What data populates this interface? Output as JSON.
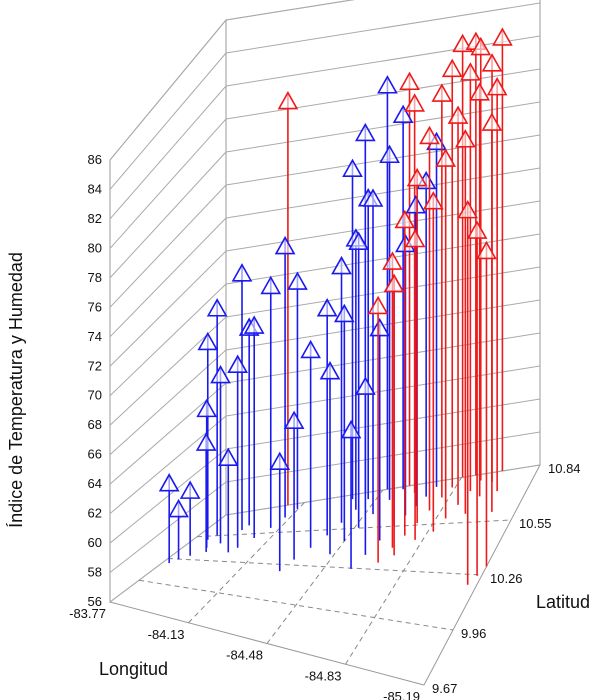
{
  "chart_data": {
    "type": "3d-stem",
    "title": "",
    "zlabel": "Índice de Temperatura y Humedad",
    "xlabel": "Longitud",
    "ylabel": "Latitud",
    "zlim": [
      56,
      86
    ],
    "z_ticks": [
      "56",
      "58",
      "60",
      "62",
      "64",
      "66",
      "68",
      "70",
      "72",
      "74",
      "76",
      "78",
      "80",
      "82",
      "84",
      "86"
    ],
    "x_ticks": [
      "-83.77",
      "-84.13",
      "-84.48",
      "-84.83",
      "-85.19"
    ],
    "y_ticks": [
      "9.67",
      "9.96",
      "10.26",
      "10.55",
      "10.84"
    ],
    "grid": true,
    "colors": {
      "low": "#1a1aee",
      "high": "#ee1a1a"
    },
    "series": [
      {
        "color_key": "low",
        "points": [
          {
            "x": -83.8,
            "y": 10.2,
            "z": 62
          },
          {
            "x": -83.82,
            "y": 10.25,
            "z": 60
          },
          {
            "x": -83.85,
            "y": 10.3,
            "z": 61
          },
          {
            "x": -83.9,
            "y": 10.35,
            "z": 64
          },
          {
            "x": -83.88,
            "y": 10.4,
            "z": 66
          },
          {
            "x": -83.92,
            "y": 10.45,
            "z": 68
          },
          {
            "x": -83.84,
            "y": 10.5,
            "z": 70
          },
          {
            "x": -83.86,
            "y": 10.55,
            "z": 72
          },
          {
            "x": -83.95,
            "y": 10.6,
            "z": 74
          },
          {
            "x": -84.0,
            "y": 10.35,
            "z": 63
          },
          {
            "x": -84.02,
            "y": 10.4,
            "z": 69
          },
          {
            "x": -84.05,
            "y": 10.5,
            "z": 71
          },
          {
            "x": -84.08,
            "y": 10.6,
            "z": 73
          },
          {
            "x": -84.1,
            "y": 10.7,
            "z": 75
          },
          {
            "x": -84.12,
            "y": 10.78,
            "z": 72
          },
          {
            "x": -83.96,
            "y": 10.65,
            "z": 70
          },
          {
            "x": -84.3,
            "y": 10.2,
            "z": 64
          },
          {
            "x": -84.32,
            "y": 10.3,
            "z": 66
          },
          {
            "x": -84.35,
            "y": 10.4,
            "z": 70
          },
          {
            "x": -84.38,
            "y": 10.5,
            "z": 72
          },
          {
            "x": -84.4,
            "y": 10.6,
            "z": 74
          },
          {
            "x": -84.42,
            "y": 10.7,
            "z": 75
          },
          {
            "x": -84.44,
            "y": 10.78,
            "z": 77
          },
          {
            "x": -84.36,
            "y": 10.8,
            "z": 79
          },
          {
            "x": -84.46,
            "y": 10.35,
            "z": 69
          },
          {
            "x": -84.48,
            "y": 10.45,
            "z": 72
          },
          {
            "x": -84.5,
            "y": 10.55,
            "z": 76
          },
          {
            "x": -84.52,
            "y": 10.65,
            "z": 78
          },
          {
            "x": -84.55,
            "y": 10.75,
            "z": 80
          },
          {
            "x": -84.58,
            "y": 10.82,
            "z": 82
          },
          {
            "x": -84.6,
            "y": 10.25,
            "z": 66
          },
          {
            "x": -84.62,
            "y": 10.35,
            "z": 68
          },
          {
            "x": -84.64,
            "y": 10.45,
            "z": 71
          },
          {
            "x": -84.66,
            "y": 10.55,
            "z": 73
          },
          {
            "x": -84.68,
            "y": 10.62,
            "z": 75
          },
          {
            "x": -84.7,
            "y": 10.68,
            "z": 77
          },
          {
            "x": -84.72,
            "y": 10.74,
            "z": 78
          },
          {
            "x": -84.74,
            "y": 10.8,
            "z": 80
          },
          {
            "x": -84.5,
            "y": 10.84,
            "z": 84
          },
          {
            "x": -84.4,
            "y": 10.84,
            "z": 81
          }
        ]
      },
      {
        "color_key": "high",
        "points": [
          {
            "x": -84.7,
            "y": 10.3,
            "z": 74
          },
          {
            "x": -84.72,
            "y": 10.4,
            "z": 76
          },
          {
            "x": -84.74,
            "y": 10.48,
            "z": 78
          },
          {
            "x": -84.76,
            "y": 10.56,
            "z": 80
          },
          {
            "x": -84.78,
            "y": 10.64,
            "z": 82
          },
          {
            "x": -84.8,
            "y": 10.72,
            "z": 84
          },
          {
            "x": -84.82,
            "y": 10.78,
            "z": 85
          },
          {
            "x": -84.84,
            "y": 10.84,
            "z": 86
          },
          {
            "x": -84.86,
            "y": 10.5,
            "z": 79
          },
          {
            "x": -84.88,
            "y": 10.58,
            "z": 81
          },
          {
            "x": -84.9,
            "y": 10.66,
            "z": 83
          },
          {
            "x": -84.92,
            "y": 10.74,
            "z": 85
          },
          {
            "x": -84.94,
            "y": 10.8,
            "z": 86
          },
          {
            "x": -84.96,
            "y": 10.6,
            "z": 82
          },
          {
            "x": -84.98,
            "y": 10.7,
            "z": 84
          },
          {
            "x": -85.0,
            "y": 10.78,
            "z": 85
          },
          {
            "x": -84.6,
            "y": 10.84,
            "z": 84
          },
          {
            "x": -84.65,
            "y": 10.78,
            "z": 83
          },
          {
            "x": -84.8,
            "y": 10.45,
            "z": 77
          },
          {
            "x": -84.75,
            "y": 10.35,
            "z": 75
          },
          {
            "x": -85.02,
            "y": 10.84,
            "z": 86
          },
          {
            "x": -85.05,
            "y": 10.72,
            "z": 84
          },
          {
            "x": -85.08,
            "y": 10.6,
            "z": 83
          },
          {
            "x": -84.9,
            "y": 10.84,
            "z": 86
          },
          {
            "x": -85.15,
            "y": 10.2,
            "z": 82
          },
          {
            "x": -85.17,
            "y": 10.25,
            "z": 80
          },
          {
            "x": -85.19,
            "y": 10.3,
            "z": 78
          },
          {
            "x": -84.05,
            "y": 10.84,
            "z": 84
          }
        ]
      }
    ]
  }
}
